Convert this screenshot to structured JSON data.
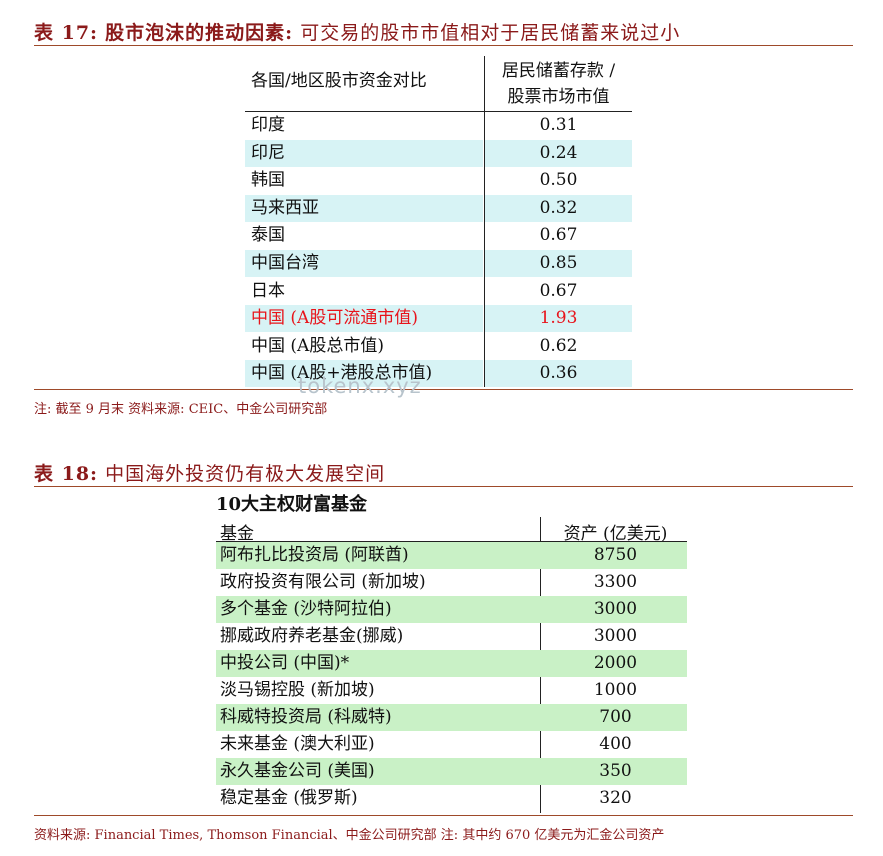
{
  "table17": {
    "caption_lead": "表 17:",
    "caption_bold": "股市泡沫的推动因素:",
    "caption_rest": "可交易的股市市值相对于居民储蓄来说过小",
    "header_col1": "各国/地区股市资金对比",
    "header_col2_line1": "居民储蓄存款 /",
    "header_col2_line2": "股票市场市值",
    "rows": [
      {
        "name": "印度",
        "value": "0.31"
      },
      {
        "name": "印尼",
        "value": "0.24"
      },
      {
        "name": "韩国",
        "value": "0.50"
      },
      {
        "name": "马来西亚",
        "value": "0.32"
      },
      {
        "name": "泰国",
        "value": "0.67"
      },
      {
        "name": "中国台湾",
        "value": "0.85"
      },
      {
        "name": "日本",
        "value": "0.67"
      },
      {
        "name": "中国 (A股可流通市值)",
        "value": "1.93"
      },
      {
        "name": "中国 (A股总市值)",
        "value": "0.62"
      },
      {
        "name": "中国 (A股+港股总市值)",
        "value": "0.36"
      }
    ],
    "highlight_color": "#e8141b",
    "note": "注: 截至 9 月末     资料来源: CEIC、中金公司研究部"
  },
  "watermark": "tokenx.xyz",
  "table18": {
    "caption_lead": "表 18:",
    "caption_rest": "中国海外投资仍有极大发展空间",
    "subtitle": "10大主权财富基金",
    "header_col1": "基金",
    "header_col2": "资产 (亿美元)",
    "rows": [
      {
        "name": "阿布扎比投资局 (阿联酋)",
        "value": "8750"
      },
      {
        "name": "政府投资有限公司 (新加坡)",
        "value": "3300"
      },
      {
        "name": "多个基金 (沙特阿拉伯)",
        "value": "3000"
      },
      {
        "name": "挪威政府养老基金(挪威)",
        "value": "3000"
      },
      {
        "name": "中投公司 (中国)*",
        "value": "2000"
      },
      {
        "name": "淡马锡控股 (新加坡)",
        "value": "1000"
      },
      {
        "name": "科威特投资局 (科威特)",
        "value": "700"
      },
      {
        "name": "未来基金 (澳大利亚)",
        "value": "400"
      },
      {
        "name": "永久基金公司 (美国)",
        "value": "350"
      },
      {
        "name": "稳定基金 (俄罗斯)",
        "value": "320"
      }
    ],
    "note": "资料来源: Financial Times, Thomson Financial、中金公司研究部 注: 其中约 670 亿美元为汇金公司资产"
  }
}
